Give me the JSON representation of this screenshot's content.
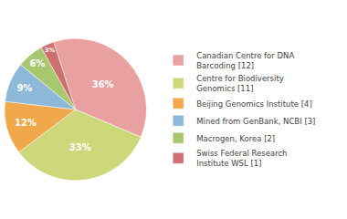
{
  "chart_data": {
    "type": "pie",
    "categories": [
      "Canadian Centre for DNA\nBarcoding [12]",
      "Centre for Biodiversity\nGenomics [11]",
      "Beijing Genomics Institute [4]",
      "Mined from GenBank, NCBI [3]",
      "Macrogen, Korea [2]",
      "Swiss Federal Research\nInstitute WSL [1]"
    ],
    "values": [
      36,
      33,
      12,
      9,
      6,
      3
    ],
    "value_labels": [
      "36%",
      "33%",
      "12%",
      "9%",
      "6%",
      "3%"
    ],
    "data_labels": true,
    "colors": [
      "#e8a0a0",
      "#cdd87a",
      "#f0a84a",
      "#8db8d8",
      "#a8c870",
      "#cc7070"
    ],
    "legend": "right"
  }
}
